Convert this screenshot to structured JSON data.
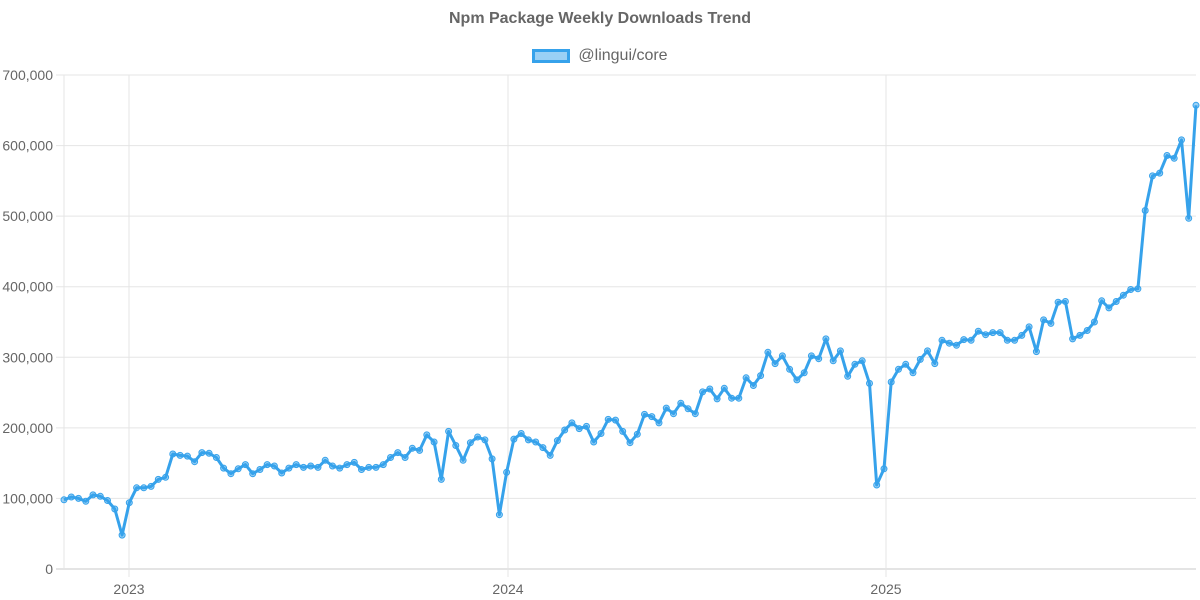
{
  "chart": {
    "title": "Npm Package Weekly Downloads Trend",
    "legend_label": "@lingui/core",
    "line_color": "#36a2eb",
    "fill_color": "rgba(54,162,235,0.5)",
    "grid_color": "#e5e5e5",
    "text_color": "#666666"
  },
  "chart_data": {
    "type": "line",
    "title": "Npm Package Weekly Downloads Trend",
    "xlabel": "",
    "ylabel": "",
    "ylim": [
      0,
      700000
    ],
    "y_ticks": [
      "0",
      "100,000",
      "200,000",
      "300,000",
      "400,000",
      "500,000",
      "600,000",
      "700,000"
    ],
    "x_ticks": [
      "2023",
      "2024",
      "2025"
    ],
    "x_range_description": "Weekly points from approx. late Oct 2022 to mid Oct 2025",
    "grid": true,
    "legend_position": "top",
    "series": [
      {
        "name": "@lingui/core",
        "values": [
          98000,
          102000,
          100000,
          96000,
          105000,
          103000,
          97000,
          85000,
          48000,
          94000,
          115000,
          115000,
          117000,
          127000,
          130000,
          163000,
          161000,
          160000,
          152000,
          165000,
          164000,
          158000,
          143000,
          135000,
          142000,
          148000,
          135000,
          141000,
          148000,
          146000,
          136000,
          143000,
          148000,
          144000,
          146000,
          144000,
          154000,
          146000,
          143000,
          148000,
          151000,
          141000,
          144000,
          144000,
          148000,
          158000,
          165000,
          158000,
          171000,
          168000,
          190000,
          180000,
          127000,
          195000,
          175000,
          154000,
          179000,
          187000,
          183000,
          156000,
          77000,
          137000,
          184000,
          192000,
          183000,
          180000,
          172000,
          161000,
          182000,
          197000,
          207000,
          199000,
          202000,
          180000,
          192000,
          212000,
          211000,
          195000,
          179000,
          191000,
          219000,
          216000,
          207000,
          228000,
          220000,
          235000,
          227000,
          220000,
          251000,
          255000,
          241000,
          256000,
          242000,
          242000,
          271000,
          260000,
          274000,
          307000,
          291000,
          302000,
          283000,
          268000,
          278000,
          302000,
          298000,
          326000,
          295000,
          309000,
          273000,
          290000,
          295000,
          263000,
          119000,
          142000,
          265000,
          283000,
          290000,
          278000,
          297000,
          309000,
          291000,
          324000,
          320000,
          317000,
          325000,
          324000,
          337000,
          332000,
          335000,
          335000,
          324000,
          324000,
          331000,
          343000,
          308000,
          353000,
          348000,
          378000,
          379000,
          326000,
          331000,
          338000,
          350000,
          380000,
          370000,
          379000,
          388000,
          396000,
          397000,
          508000,
          557000,
          561000,
          586000,
          582000,
          608000,
          497000,
          657000
        ]
      }
    ]
  }
}
